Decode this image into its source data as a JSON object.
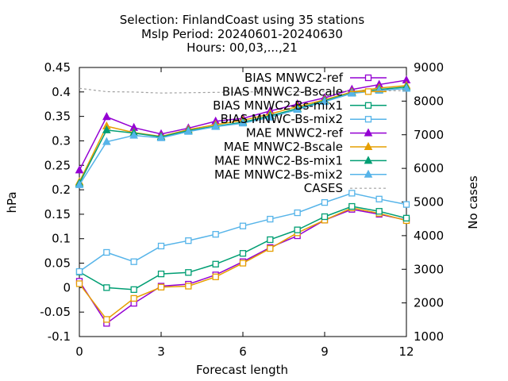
{
  "chart_data": {
    "type": "line",
    "title_lines": [
      "Selection: FinlandCoast using    35 stations",
      "Mslp   Period: 20240601-20240630",
      "Hours: 00,03,...,21"
    ],
    "xlabel": "Forecast length",
    "ylabel": "hPa",
    "y2label": "No cases",
    "xlim": [
      0,
      12
    ],
    "ylim": [
      -0.1,
      0.45
    ],
    "y2lim": [
      1000,
      9000
    ],
    "xticks": [
      "0",
      "3",
      "6",
      "9",
      "12"
    ],
    "yticks": [
      "-0.1",
      "-0.05",
      "0",
      "0.05",
      "0.1",
      "0.15",
      "0.2",
      "0.25",
      "0.3",
      "0.35",
      "0.4",
      "0.45"
    ],
    "y2ticks": [
      "1000",
      "2000",
      "3000",
      "4000",
      "5000",
      "6000",
      "7000",
      "8000",
      "9000"
    ],
    "grid": false,
    "legend_position": "top-right",
    "x": [
      0,
      1,
      2,
      3,
      4,
      5,
      6,
      7,
      8,
      9,
      10,
      11,
      12
    ],
    "series": [
      {
        "name": "BIAS MNWC2-ref",
        "axis": "y",
        "color": "#9400d3",
        "marker": "open-square",
        "values": [
          0.013,
          -0.073,
          -0.032,
          0.003,
          0.007,
          0.026,
          0.053,
          0.082,
          0.106,
          0.138,
          0.16,
          0.15,
          0.138
        ]
      },
      {
        "name": "BIAS MNWC2-Bscale",
        "axis": "y",
        "color": "#e69f00",
        "marker": "open-square",
        "values": [
          0.008,
          -0.065,
          -0.022,
          0.001,
          0.003,
          0.022,
          0.05,
          0.08,
          0.112,
          0.138,
          0.163,
          0.152,
          0.137
        ]
      },
      {
        "name": "BIAS MNWC2-Bs-mix1",
        "axis": "y",
        "color": "#009e73",
        "marker": "open-square",
        "values": [
          0.032,
          0.0,
          -0.004,
          0.028,
          0.031,
          0.048,
          0.07,
          0.098,
          0.118,
          0.145,
          0.166,
          0.156,
          0.142
        ]
      },
      {
        "name": "BIAS MNWC-Bs-mix2",
        "axis": "y",
        "color": "#56b4e9",
        "marker": "open-square",
        "values": [
          0.033,
          0.072,
          0.053,
          0.085,
          0.096,
          0.109,
          0.126,
          0.14,
          0.153,
          0.174,
          0.193,
          0.181,
          0.17
        ]
      },
      {
        "name": "MAE MNWC2-ref",
        "axis": "y",
        "color": "#9400d3",
        "marker": "filled-triangle",
        "values": [
          0.24,
          0.349,
          0.327,
          0.314,
          0.326,
          0.34,
          0.346,
          0.361,
          0.375,
          0.388,
          0.405,
          0.415,
          0.424
        ]
      },
      {
        "name": "MAE MNWC2-Bscale",
        "axis": "y",
        "color": "#e69f00",
        "marker": "filled-triangle",
        "values": [
          0.216,
          0.33,
          0.317,
          0.309,
          0.323,
          0.333,
          0.342,
          0.355,
          0.37,
          0.384,
          0.4,
          0.408,
          0.413
        ]
      },
      {
        "name": "MAE MNWC2-Bs-mix1",
        "axis": "y",
        "color": "#009e73",
        "marker": "filled-triangle",
        "values": [
          0.213,
          0.322,
          0.316,
          0.308,
          0.321,
          0.33,
          0.338,
          0.351,
          0.366,
          0.382,
          0.398,
          0.405,
          0.41
        ]
      },
      {
        "name": "MAE MNWC2-Bs-mix2",
        "axis": "y",
        "color": "#56b4e9",
        "marker": "filled-triangle",
        "values": [
          0.21,
          0.298,
          0.311,
          0.306,
          0.319,
          0.329,
          0.336,
          0.348,
          0.364,
          0.38,
          0.397,
          0.403,
          0.407
        ]
      },
      {
        "name": "CASES",
        "axis": "y2",
        "color": "#a0a0a0",
        "marker": "none",
        "dashed": true,
        "values": [
          8380,
          8280,
          8270,
          8240,
          8250,
          8260,
          8270,
          8280,
          8280,
          8290,
          8300,
          8310,
          8310
        ]
      }
    ]
  }
}
